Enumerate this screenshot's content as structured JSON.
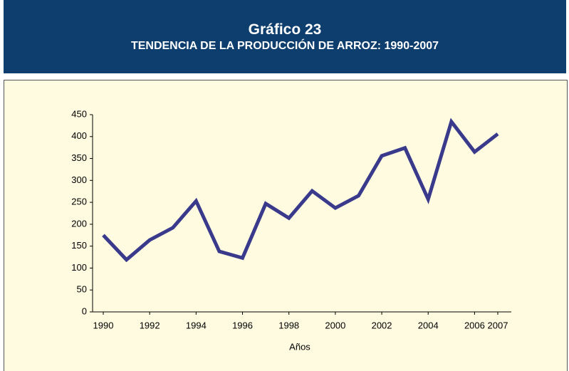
{
  "header": {
    "title": "Gráfico  23",
    "subtitle": "TENDENCIA DE LA PRODUCCIÓN DE ARROZ: 1990-2007"
  },
  "chart_data": {
    "type": "line",
    "x": [
      1990,
      1991,
      1992,
      1993,
      1994,
      1995,
      1996,
      1997,
      1998,
      1999,
      2000,
      2001,
      2002,
      2003,
      2004,
      2005,
      2006,
      2007
    ],
    "series": [
      {
        "name": null,
        "color": "#3a3a8c",
        "values": [
          175,
          119,
          164,
          192,
          253,
          138,
          123,
          247,
          214,
          276,
          237,
          265,
          356,
          374,
          257,
          434,
          365,
          406
        ]
      }
    ],
    "xlim": [
      1990,
      2007
    ],
    "xticks": [
      1990,
      1992,
      1994,
      1996,
      1998,
      2000,
      2002,
      2004,
      2006,
      2007
    ],
    "ylim": [
      0,
      450
    ],
    "yticks": [
      0,
      50,
      100,
      150,
      200,
      250,
      300,
      350,
      400,
      450
    ],
    "xlabel": "Años",
    "grid": false
  }
}
